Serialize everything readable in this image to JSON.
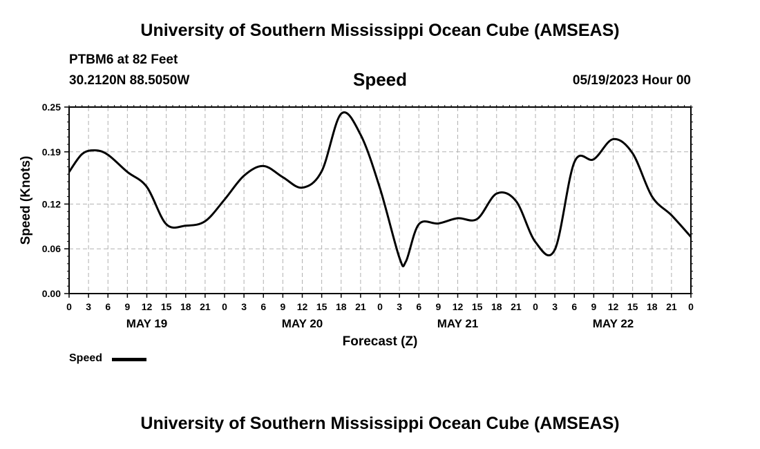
{
  "header": {
    "title": "University of Southern Mississippi Ocean Cube (AMSEAS)",
    "station": "PTBM6 at 82 Feet",
    "coords": "30.2120N  88.5050W",
    "variable": "Speed",
    "date": "05/19/2023 Hour 00"
  },
  "footer": {
    "title": "University of Southern Mississippi Ocean Cube (AMSEAS)"
  },
  "legend": {
    "label": "Speed",
    "color": "#000000"
  },
  "chart_data": {
    "type": "line",
    "title": "Speed",
    "xlabel": "Forecast (Z)",
    "ylabel": "Speed (Knots)",
    "xlim": [
      0,
      96
    ],
    "ylim": [
      0.0,
      0.25
    ],
    "yticks": [
      0.0,
      0.06,
      0.12,
      0.19,
      0.25
    ],
    "ytick_labels": [
      "0.00",
      "0.06",
      "0.12",
      "0.19",
      "0.25"
    ],
    "xtick_labels": [
      "0",
      "3",
      "6",
      "9",
      "12",
      "15",
      "18",
      "21",
      "0",
      "3",
      "6",
      "9",
      "12",
      "15",
      "18",
      "21",
      "0",
      "3",
      "6",
      "9",
      "12",
      "15",
      "18",
      "21",
      "0",
      "3",
      "6",
      "9",
      "12",
      "15",
      "18",
      "21",
      "0"
    ],
    "day_labels": [
      {
        "label": "MAY 19",
        "hour": 12
      },
      {
        "label": "MAY 20",
        "hour": 36
      },
      {
        "label": "MAY 21",
        "hour": 60
      },
      {
        "label": "MAY 22",
        "hour": 84
      }
    ],
    "grid": true,
    "series": [
      {
        "name": "Speed",
        "x": [
          0,
          2,
          4,
          6,
          9,
          12,
          15,
          18,
          21,
          24,
          27,
          30,
          33,
          36,
          39,
          42,
          45,
          48,
          51,
          52,
          54,
          57,
          60,
          63,
          66,
          69,
          72,
          75,
          78,
          81,
          84,
          87,
          90,
          93,
          96
        ],
        "values": [
          0.163,
          0.187,
          0.192,
          0.186,
          0.163,
          0.143,
          0.093,
          0.091,
          0.097,
          0.126,
          0.158,
          0.171,
          0.156,
          0.142,
          0.164,
          0.241,
          0.213,
          0.141,
          0.048,
          0.043,
          0.093,
          0.094,
          0.101,
          0.1,
          0.134,
          0.124,
          0.069,
          0.059,
          0.176,
          0.18,
          0.207,
          0.188,
          0.13,
          0.105,
          0.076
        ]
      }
    ]
  }
}
